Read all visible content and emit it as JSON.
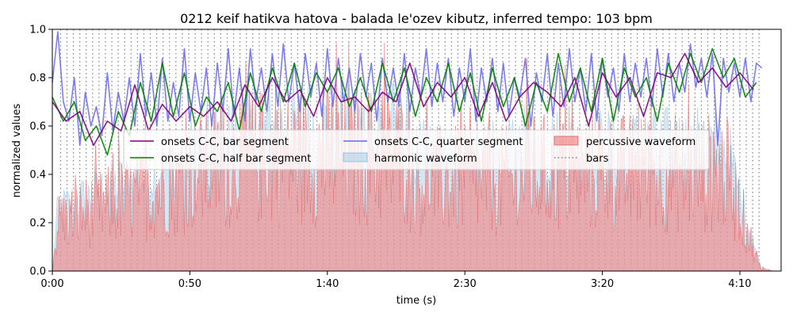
{
  "chart_data": {
    "type": "line",
    "title": "0212 keif hatikva hatova - balada le'ozev kibutz, inferred tempo: 103 bpm",
    "xlabel": "time (s)",
    "ylabel": "normalized values",
    "xlim": [
      0,
      265
    ],
    "ylim": [
      0,
      1.0
    ],
    "x_ticks": [
      {
        "value": 0,
        "label": "0:00"
      },
      {
        "value": 50,
        "label": "0:50"
      },
      {
        "value": 100,
        "label": "1:40"
      },
      {
        "value": 150,
        "label": "2:30"
      },
      {
        "value": 200,
        "label": "3:20"
      },
      {
        "value": 250,
        "label": "4:10"
      }
    ],
    "y_ticks": [
      {
        "value": 0.0,
        "label": "0.0"
      },
      {
        "value": 0.2,
        "label": "0.2"
      },
      {
        "value": 0.4,
        "label": "0.4"
      },
      {
        "value": 0.6,
        "label": "0.6"
      },
      {
        "value": 0.8,
        "label": "0.8"
      },
      {
        "value": 1.0,
        "label": "1.0"
      }
    ],
    "legend_placement": "center",
    "bars_spacing_s": 2.33,
    "bars_start_s": 3.0,
    "bars_end_s": 259.0,
    "series": [
      {
        "name": "onsets C-C, bar segment",
        "kind": "line",
        "color": "#800080",
        "x": [
          0,
          5,
          10,
          15,
          20,
          25,
          30,
          35,
          40,
          45,
          50,
          55,
          60,
          65,
          70,
          75,
          80,
          85,
          90,
          95,
          100,
          105,
          110,
          115,
          120,
          125,
          130,
          135,
          140,
          145,
          150,
          155,
          160,
          165,
          170,
          175,
          180,
          185,
          190,
          195,
          200,
          205,
          210,
          215,
          220,
          225,
          230,
          235,
          240,
          245,
          250,
          255
        ],
        "values": [
          0.7,
          0.62,
          0.66,
          0.52,
          0.62,
          0.58,
          0.77,
          0.58,
          0.69,
          0.62,
          0.68,
          0.64,
          0.7,
          0.62,
          0.77,
          0.68,
          0.8,
          0.7,
          0.75,
          0.64,
          0.8,
          0.7,
          0.72,
          0.66,
          0.74,
          0.7,
          0.86,
          0.68,
          0.78,
          0.72,
          0.8,
          0.64,
          0.78,
          0.62,
          0.72,
          0.78,
          0.74,
          0.68,
          0.8,
          0.6,
          0.82,
          0.72,
          0.8,
          0.64,
          0.82,
          0.8,
          0.9,
          0.78,
          0.84,
          0.76,
          0.82,
          0.75
        ]
      },
      {
        "name": "onsets C-C, half bar segment",
        "kind": "line",
        "color": "#008000",
        "x": [
          0,
          4,
          8,
          12,
          16,
          20,
          24,
          28,
          32,
          36,
          40,
          44,
          48,
          52,
          56,
          60,
          64,
          68,
          72,
          76,
          80,
          84,
          88,
          92,
          96,
          100,
          104,
          108,
          112,
          116,
          120,
          124,
          128,
          132,
          136,
          140,
          144,
          148,
          152,
          156,
          160,
          164,
          168,
          172,
          176,
          180,
          184,
          188,
          192,
          196,
          200,
          204,
          208,
          212,
          216,
          220,
          224,
          228,
          232,
          236,
          240,
          244,
          248,
          252,
          256
        ],
        "values": [
          0.72,
          0.62,
          0.7,
          0.54,
          0.6,
          0.48,
          0.66,
          0.56,
          0.78,
          0.62,
          0.86,
          0.64,
          0.82,
          0.6,
          0.72,
          0.66,
          0.78,
          0.58,
          0.82,
          0.66,
          0.84,
          0.7,
          0.86,
          0.68,
          0.82,
          0.74,
          0.84,
          0.68,
          0.8,
          0.66,
          0.86,
          0.7,
          0.84,
          0.64,
          0.8,
          0.7,
          0.86,
          0.66,
          0.82,
          0.62,
          0.84,
          0.68,
          0.8,
          0.6,
          0.78,
          0.66,
          0.9,
          0.7,
          0.84,
          0.66,
          0.88,
          0.62,
          0.84,
          0.72,
          0.8,
          0.62,
          0.86,
          0.74,
          0.9,
          0.78,
          0.92,
          0.8,
          0.88,
          0.72,
          0.78
        ]
      },
      {
        "name": "onsets C-C, quarter segment",
        "kind": "line",
        "color": "#6666ee",
        "x": [
          0,
          2,
          4,
          6,
          8,
          10,
          12,
          14,
          16,
          18,
          20,
          22,
          24,
          26,
          28,
          30,
          32,
          34,
          36,
          38,
          40,
          42,
          44,
          46,
          48,
          50,
          52,
          54,
          56,
          58,
          60,
          62,
          64,
          66,
          68,
          70,
          72,
          74,
          76,
          78,
          80,
          82,
          84,
          86,
          88,
          90,
          92,
          94,
          96,
          98,
          100,
          102,
          104,
          106,
          108,
          110,
          112,
          114,
          116,
          118,
          120,
          122,
          124,
          126,
          128,
          130,
          132,
          134,
          136,
          138,
          140,
          142,
          144,
          146,
          148,
          150,
          152,
          154,
          156,
          158,
          160,
          162,
          164,
          166,
          168,
          170,
          172,
          174,
          176,
          178,
          180,
          182,
          184,
          186,
          188,
          190,
          192,
          194,
          196,
          198,
          200,
          202,
          204,
          206,
          208,
          210,
          212,
          214,
          216,
          218,
          220,
          222,
          224,
          226,
          228,
          230,
          232,
          234,
          236,
          238,
          240,
          242,
          244,
          246,
          248,
          250,
          252,
          254,
          256,
          258
        ],
        "values": [
          0.78,
          0.99,
          0.7,
          0.62,
          0.8,
          0.52,
          0.74,
          0.6,
          0.68,
          0.56,
          0.82,
          0.58,
          0.74,
          0.62,
          0.8,
          0.6,
          0.9,
          0.64,
          0.82,
          0.6,
          0.88,
          0.62,
          0.78,
          0.64,
          0.92,
          0.62,
          0.82,
          0.66,
          0.84,
          0.6,
          0.86,
          0.66,
          0.92,
          0.64,
          0.84,
          0.62,
          0.92,
          0.7,
          0.84,
          0.66,
          0.9,
          0.68,
          0.94,
          0.7,
          0.86,
          0.66,
          0.9,
          0.72,
          0.86,
          0.64,
          0.92,
          0.68,
          0.88,
          0.7,
          0.84,
          0.66,
          0.9,
          0.72,
          0.86,
          0.62,
          0.88,
          0.7,
          0.84,
          0.68,
          0.9,
          0.66,
          0.84,
          0.72,
          0.92,
          0.68,
          0.86,
          0.7,
          0.88,
          0.64,
          0.84,
          0.7,
          0.92,
          0.62,
          0.84,
          0.7,
          0.88,
          0.66,
          0.86,
          0.64,
          0.8,
          0.72,
          0.88,
          0.6,
          0.82,
          0.7,
          0.9,
          0.64,
          0.86,
          0.68,
          0.92,
          0.7,
          0.84,
          0.66,
          0.9,
          0.62,
          0.88,
          0.72,
          0.84,
          0.66,
          0.9,
          0.7,
          0.86,
          0.72,
          0.88,
          0.68,
          0.92,
          0.72,
          0.9,
          0.7,
          0.86,
          0.74,
          0.94,
          0.76,
          0.88,
          0.72,
          0.9,
          0.52,
          0.88,
          0.74,
          0.86,
          0.72,
          0.88,
          0.7,
          0.86,
          0.84
        ]
      },
      {
        "name": "harmonic waveform",
        "kind": "area",
        "color": "#aad0e8"
      },
      {
        "name": "percussive waveform",
        "kind": "area",
        "color": "#f08080"
      },
      {
        "name": "bars",
        "kind": "vlines",
        "color": "#808080"
      }
    ]
  }
}
